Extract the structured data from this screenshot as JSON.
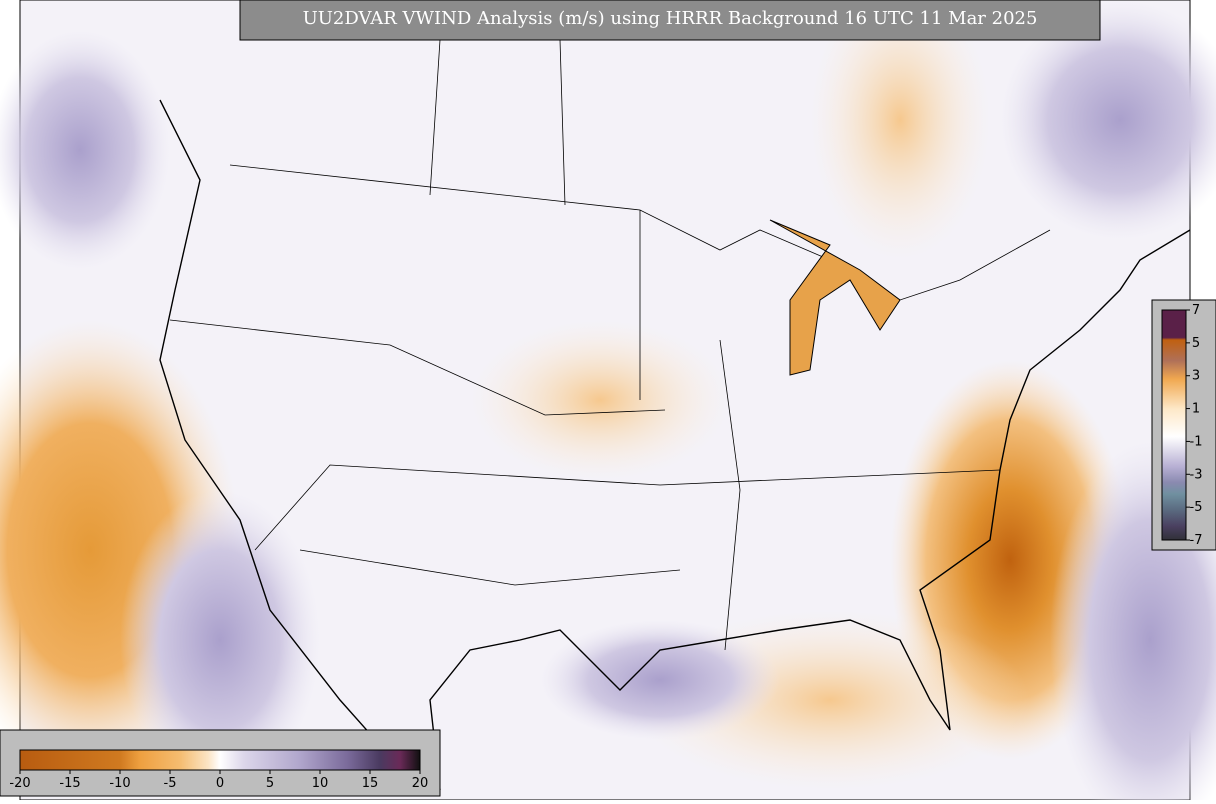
{
  "header": {
    "title": "UU2DVAR VWIND Analysis (m/s) using HRRR Background 16 UTC 11 Mar 2025"
  },
  "legend": {
    "bottom": {
      "ticks": [
        -20,
        -15,
        -10,
        -5,
        0,
        5,
        10,
        15,
        20
      ]
    },
    "right": {
      "ticks": [
        7,
        5,
        3,
        1,
        -1,
        -3,
        -5,
        -7
      ]
    }
  }
}
